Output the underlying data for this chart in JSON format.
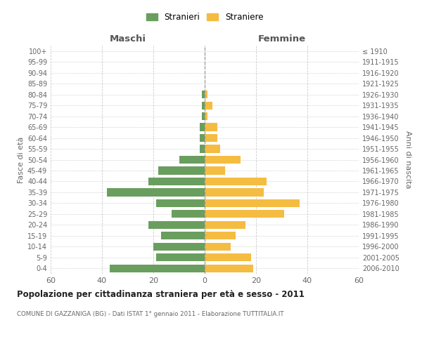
{
  "age_groups_bottom_to_top": [
    "0-4",
    "5-9",
    "10-14",
    "15-19",
    "20-24",
    "25-29",
    "30-34",
    "35-39",
    "40-44",
    "45-49",
    "50-54",
    "55-59",
    "60-64",
    "65-69",
    "70-74",
    "75-79",
    "80-84",
    "85-89",
    "90-94",
    "95-99",
    "100+"
  ],
  "birth_years_bottom_to_top": [
    "2006-2010",
    "2001-2005",
    "1996-2000",
    "1991-1995",
    "1986-1990",
    "1981-1985",
    "1976-1980",
    "1971-1975",
    "1966-1970",
    "1961-1965",
    "1956-1960",
    "1951-1955",
    "1946-1950",
    "1941-1945",
    "1936-1940",
    "1931-1935",
    "1926-1930",
    "1921-1925",
    "1916-1920",
    "1911-1915",
    "≤ 1910"
  ],
  "maschi_bottom_to_top": [
    37,
    19,
    20,
    17,
    22,
    13,
    19,
    38,
    22,
    18,
    10,
    2,
    2,
    2,
    1,
    1,
    1,
    0,
    0,
    0,
    0
  ],
  "femmine_bottom_to_top": [
    19,
    18,
    10,
    12,
    16,
    31,
    37,
    23,
    24,
    8,
    14,
    6,
    5,
    5,
    1,
    3,
    1,
    0,
    0,
    0,
    0
  ],
  "maschi_color": "#6a9e5e",
  "femmine_color": "#f5bc42",
  "title": "Popolazione per cittadinanza straniera per età e sesso - 2011",
  "subtitle": "COMUNE DI GAZZANIGA (BG) - Dati ISTAT 1° gennaio 2011 - Elaborazione TUTTITALIA.IT",
  "ylabel_left": "Fasce di età",
  "ylabel_right": "Anni di nascita",
  "label_maschi": "Maschi",
  "label_femmine": "Femmine",
  "legend_maschi": "Stranieri",
  "legend_femmine": "Straniere",
  "xlim": 60,
  "background_color": "#ffffff",
  "grid_color": "#cccccc"
}
